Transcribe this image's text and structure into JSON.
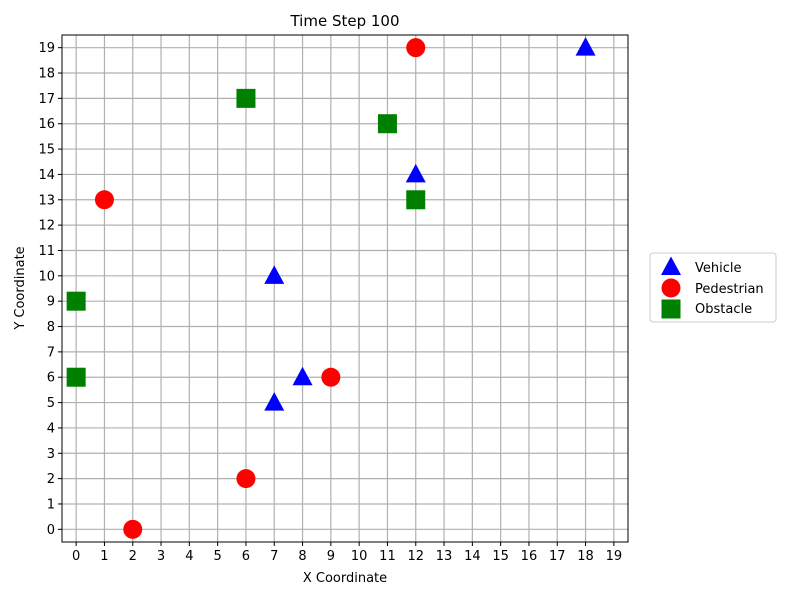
{
  "chart_data": {
    "type": "scatter",
    "title": "Time Step 100",
    "xlabel": "X Coordinate",
    "ylabel": "Y Coordinate",
    "xlim": [
      -0.5,
      19.5
    ],
    "ylim": [
      -0.5,
      19.5
    ],
    "xticks": [
      "0",
      "1",
      "2",
      "3",
      "4",
      "5",
      "6",
      "7",
      "8",
      "9",
      "10",
      "11",
      "12",
      "13",
      "14",
      "15",
      "16",
      "17",
      "18",
      "19"
    ],
    "yticks": [
      "0",
      "1",
      "2",
      "3",
      "4",
      "5",
      "6",
      "7",
      "8",
      "9",
      "10",
      "11",
      "12",
      "13",
      "14",
      "15",
      "16",
      "17",
      "18",
      "19"
    ],
    "grid": true,
    "legend_position": "outside-right",
    "series": [
      {
        "name": "Vehicle",
        "marker": "triangle",
        "color": "#0000ff",
        "points": [
          [
            18,
            19
          ],
          [
            12,
            14
          ],
          [
            7,
            10
          ],
          [
            8,
            6
          ],
          [
            7,
            5
          ]
        ]
      },
      {
        "name": "Pedestrian",
        "marker": "circle",
        "color": "#ff0000",
        "points": [
          [
            12,
            19
          ],
          [
            1,
            13
          ],
          [
            9,
            6
          ],
          [
            6,
            2
          ],
          [
            2,
            0
          ]
        ]
      },
      {
        "name": "Obstacle",
        "marker": "square",
        "color": "#008000",
        "points": [
          [
            6,
            17
          ],
          [
            11,
            16
          ],
          [
            12,
            13
          ],
          [
            0,
            9
          ],
          [
            0,
            6
          ]
        ]
      }
    ]
  }
}
